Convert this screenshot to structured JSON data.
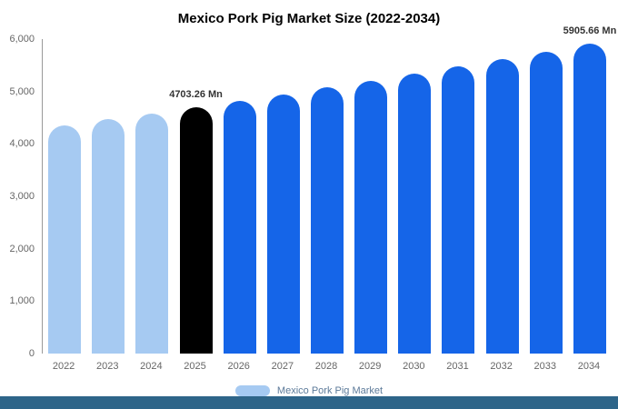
{
  "title": "Mexico Pork Pig Market Size (2022-2034)",
  "colors": {
    "light_blue": "#A6CAF2",
    "black": "#000000",
    "primary_blue": "#1565E8",
    "footer_blue": "#2E6589",
    "axis_text": "#666666",
    "value_label_text": "#333333"
  },
  "chart_data": {
    "type": "bar",
    "title": "Mexico Pork Pig Market Size (2022-2034)",
    "xlabel": "",
    "ylabel": "",
    "ylim": [
      0,
      6000
    ],
    "grid": false,
    "legend_position": "bottom",
    "categories": [
      "2022",
      "2023",
      "2024",
      "2025",
      "2026",
      "2027",
      "2028",
      "2029",
      "2030",
      "2031",
      "2032",
      "2033",
      "2034"
    ],
    "values": [
      4359,
      4471,
      4586,
      4703.26,
      4824,
      4947,
      5074,
      5204,
      5337,
      5474,
      5614,
      5758,
      5905.66
    ],
    "bar_styles": [
      "light_blue",
      "light_blue",
      "light_blue",
      "black",
      "primary_blue",
      "primary_blue",
      "primary_blue",
      "primary_blue",
      "primary_blue",
      "primary_blue",
      "primary_blue",
      "primary_blue",
      "primary_blue"
    ],
    "value_labels": [
      {
        "index": 3,
        "text": "4703.26 Mn"
      },
      {
        "index": 12,
        "text": "5905.66 Mn"
      }
    ],
    "yticks": [
      {
        "value": 0,
        "label": "0"
      },
      {
        "value": 1000,
        "label": "1,000"
      },
      {
        "value": 2000,
        "label": "2,000"
      },
      {
        "value": 3000,
        "label": "3,000"
      },
      {
        "value": 4000,
        "label": "4,000"
      },
      {
        "value": 5000,
        "label": "5,000"
      },
      {
        "value": 6000,
        "label": "6,000"
      }
    ]
  },
  "legend": {
    "label": "Mexico Pork Pig Market",
    "swatch_color": "#A6CAF2"
  }
}
